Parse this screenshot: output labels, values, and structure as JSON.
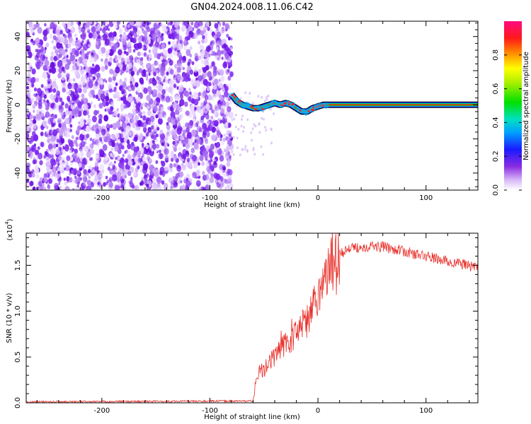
{
  "title": "GN04.2024.008.11.06.C42",
  "chart_data": [
    {
      "type": "heatmap",
      "name": "spectrogram",
      "xlabel": "Height of straight line (km)",
      "ylabel": "Frequency (Hz)",
      "xlim": [
        -270,
        148
      ],
      "ylim": [
        -50,
        49
      ],
      "xticks": [
        -200,
        -100,
        0,
        100
      ],
      "yticks": [
        -40,
        -20,
        0,
        20,
        40
      ],
      "noise_region_x": [
        -270,
        -80
      ],
      "signal_track": {
        "x": [
          -80,
          -75,
          -70,
          -65,
          -60,
          -55,
          -50,
          -45,
          -40,
          -35,
          -30,
          -25,
          -20,
          -15,
          -10,
          -5,
          0,
          5,
          10,
          148
        ],
        "freq": [
          6,
          2,
          0,
          -1,
          -2,
          -2,
          -1,
          0,
          1,
          0,
          1,
          0,
          -2,
          -4,
          -4,
          -2,
          -1,
          0,
          0,
          0
        ]
      },
      "colorbar": {
        "label": "Normalized spectral amplitude",
        "range": [
          0.0,
          1.0
        ],
        "ticks": [
          "0.0",
          "0.2",
          "0.4",
          "0.6",
          "0.8"
        ],
        "tick_values": [
          0.0,
          0.2,
          0.4,
          0.6,
          0.8
        ]
      }
    },
    {
      "type": "line",
      "name": "snr",
      "xlabel": "Height of straight line (km)",
      "ylabel": "SNR (10 * v/v)",
      "scale_label": "(x10",
      "scale_exp": "4",
      "scale_close": ")",
      "xlim": [
        -270,
        148
      ],
      "ylim": [
        0,
        1.85
      ],
      "xticks": [
        -200,
        -100,
        0,
        100
      ],
      "yticks": [
        "0.0",
        "0.5",
        "1.0",
        "1.5"
      ],
      "ytick_values": [
        0.0,
        0.5,
        1.0,
        1.5
      ],
      "color": "#e8302a",
      "envelope": {
        "x": [
          -270,
          -60,
          -57,
          -54,
          -50,
          -45,
          -40,
          -35,
          -30,
          -25,
          -20,
          -15,
          -10,
          -5,
          0,
          5,
          10,
          15,
          20,
          25,
          30,
          40,
          50,
          60,
          70,
          80,
          90,
          100,
          110,
          120,
          130,
          148
        ],
        "y": [
          0.01,
          0.02,
          0.25,
          0.35,
          0.38,
          0.45,
          0.55,
          0.6,
          0.68,
          0.72,
          0.78,
          0.85,
          0.95,
          1.05,
          1.15,
          1.3,
          1.45,
          1.55,
          1.62,
          1.66,
          1.68,
          1.7,
          1.71,
          1.7,
          1.68,
          1.65,
          1.62,
          1.6,
          1.57,
          1.54,
          1.52,
          1.48
        ]
      }
    }
  ]
}
